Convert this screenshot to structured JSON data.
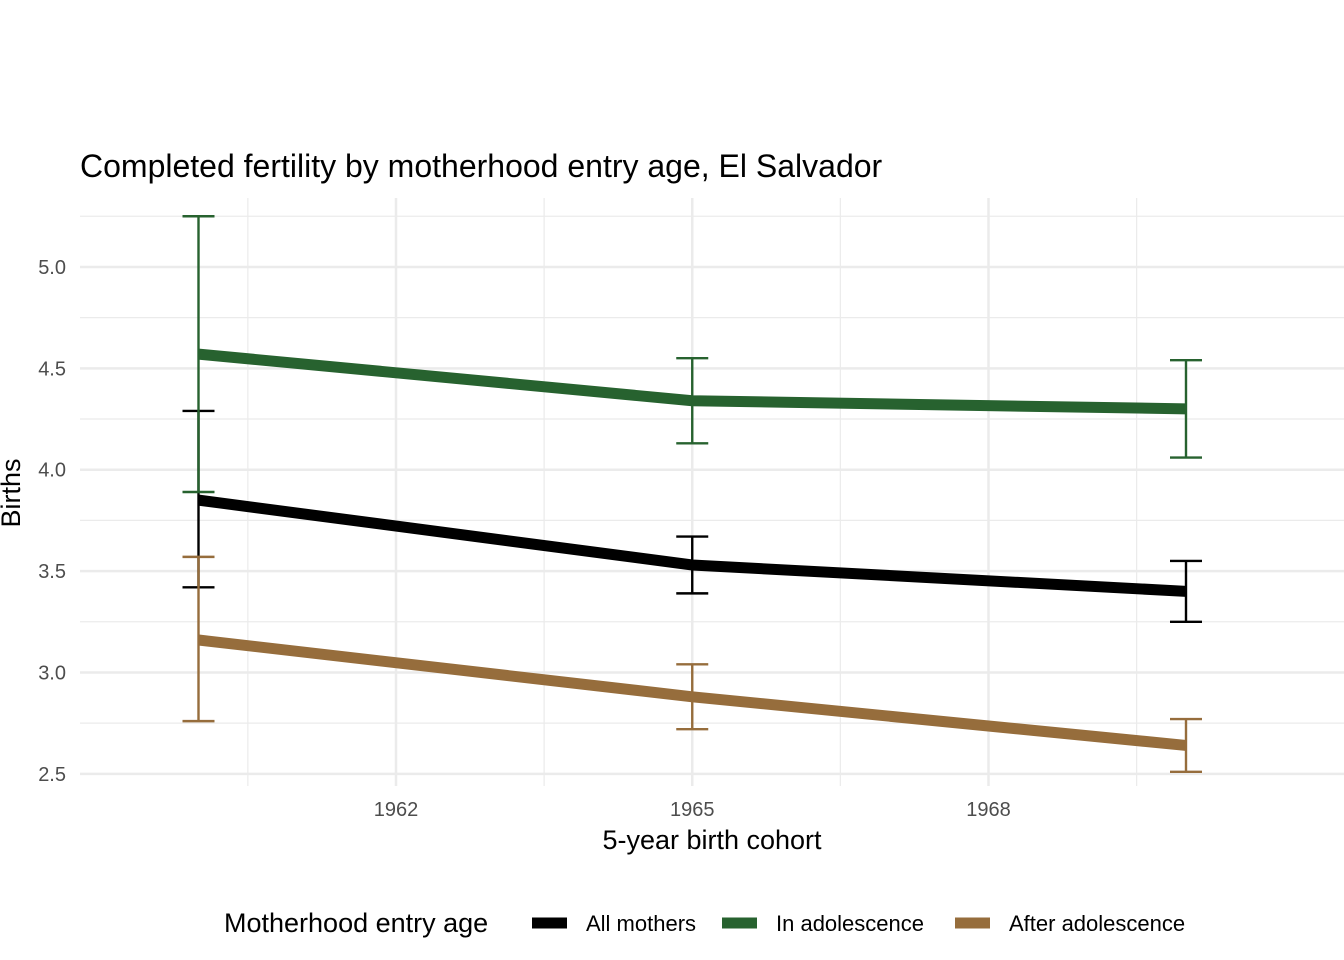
{
  "chart_data": {
    "type": "line",
    "title": "Completed fertility by motherhood entry age,  El Salvador",
    "xlabel": "5-year birth cohort",
    "ylabel": "Births",
    "x": [
      1960,
      1965,
      1970
    ],
    "x_ticks": [
      1962,
      1965,
      1968
    ],
    "x_tick_labels": [
      "1962",
      "1965",
      "1968"
    ],
    "xlim": [
      1958.8,
      1971.6
    ],
    "y_ticks": [
      2.5,
      3.0,
      3.5,
      4.0,
      4.5,
      5.0
    ],
    "y_tick_labels": [
      "2.5",
      "3.0",
      "3.5",
      "4.0",
      "4.5",
      "5.0"
    ],
    "ylim": [
      2.44,
      5.34
    ],
    "grid": true,
    "legend_position": "bottom",
    "legend_title": "Motherhood entry age",
    "series": [
      {
        "name": "All mothers",
        "color": "#000000",
        "values": [
          3.85,
          3.53,
          3.4
        ],
        "ci_low": [
          3.42,
          3.39,
          3.25
        ],
        "ci_high": [
          4.29,
          3.67,
          3.55
        ]
      },
      {
        "name": "In adolescence",
        "color": "#27622f",
        "values": [
          4.57,
          4.34,
          4.3
        ],
        "ci_low": [
          3.89,
          4.13,
          4.06
        ],
        "ci_high": [
          5.25,
          4.55,
          4.54
        ]
      },
      {
        "name": "After adolescence",
        "color": "#966d3c",
        "values": [
          3.16,
          2.88,
          2.64
        ],
        "ci_low": [
          2.76,
          2.72,
          2.51
        ],
        "ci_high": [
          3.57,
          3.04,
          2.77
        ]
      }
    ]
  }
}
